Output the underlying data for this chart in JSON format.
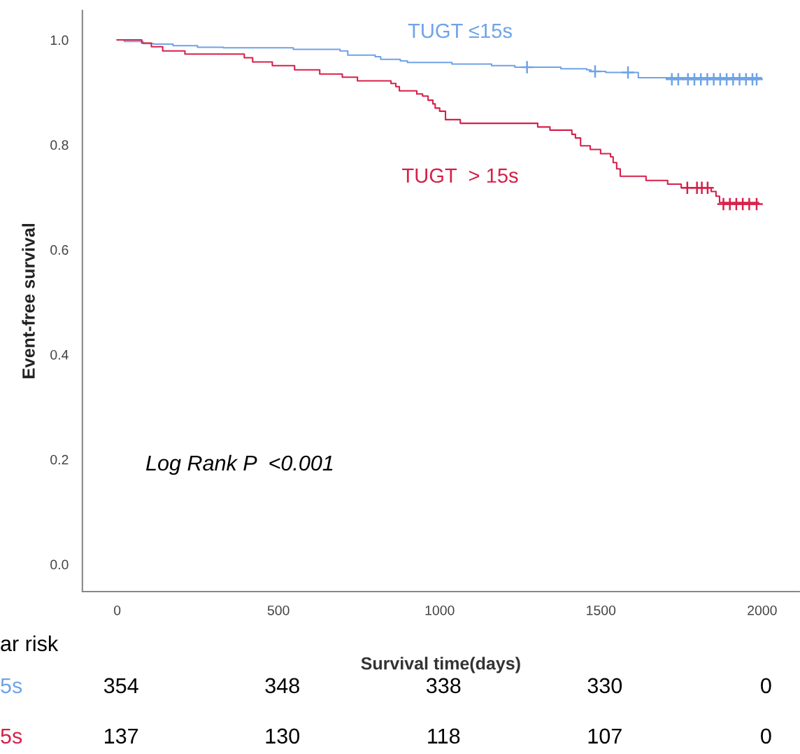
{
  "chart_data": {
    "type": "step",
    "xlabel": "Survival time(days)",
    "ylabel": "Event-free survival",
    "xlim": [
      -108,
      2115
    ],
    "ylim": [
      -0.052,
      1.056
    ],
    "xticks": [
      0,
      500,
      1000,
      1500,
      2000
    ],
    "yticks": [
      {
        "value": 0.0,
        "label": "0.0"
      },
      {
        "value": 0.2,
        "label": "0.2"
      },
      {
        "value": 0.4,
        "label": "0.4"
      },
      {
        "value": 0.6,
        "label": "0.6"
      },
      {
        "value": 0.8,
        "label": "0.8"
      },
      {
        "value": 1.0,
        "label": "1.0"
      }
    ],
    "grid": false,
    "legend": false,
    "series": [
      {
        "name": "TUGT ≤15s",
        "color": "#6fa3e6",
        "x": [
          0,
          22,
          80,
          113,
          173,
          249,
          329,
          546,
          691,
          715,
          800,
          817,
          878,
          900,
          1038,
          1161,
          1233,
          1376,
          1456,
          1469,
          1515,
          1616,
          1998
        ],
        "values": [
          1.0,
          0.997,
          0.993,
          0.992,
          0.989,
          0.986,
          0.985,
          0.982,
          0.979,
          0.971,
          0.968,
          0.963,
          0.96,
          0.957,
          0.954,
          0.951,
          0.948,
          0.945,
          0.943,
          0.94,
          0.938,
          0.928,
          0.925
        ]
      },
      {
        "name": "TUGT  > 15s",
        "color": "#d6204a",
        "x": [
          0,
          76,
          106,
          141,
          210,
          394,
          420,
          481,
          550,
          628,
          698,
          745,
          849,
          864,
          875,
          929,
          947,
          964,
          979,
          986,
          1000,
          1018,
          1064,
          1304,
          1342,
          1410,
          1421,
          1437,
          1467,
          1499,
          1530,
          1538,
          1549,
          1560,
          1640,
          1707,
          1749,
          1842,
          1857,
          1868,
          1989
        ],
        "values": [
          1.0,
          0.994,
          0.987,
          0.979,
          0.973,
          0.966,
          0.958,
          0.951,
          0.943,
          0.935,
          0.929,
          0.922,
          0.917,
          0.911,
          0.903,
          0.897,
          0.893,
          0.885,
          0.878,
          0.87,
          0.864,
          0.848,
          0.841,
          0.834,
          0.828,
          0.82,
          0.813,
          0.798,
          0.791,
          0.783,
          0.777,
          0.766,
          0.754,
          0.74,
          0.732,
          0.725,
          0.718,
          0.711,
          0.702,
          0.69,
          0.687
        ]
      },
      {
        "color": "#6fa3e6",
        "type": "scatter",
        "marker": "cross",
        "x": [
          1271,
          1482,
          1584,
          1720,
          1740,
          1770,
          1790,
          1810,
          1830,
          1850,
          1870,
          1890,
          1910,
          1930,
          1950,
          1970,
          1983
        ],
        "values": [
          0.948,
          0.94,
          0.938,
          0.925,
          0.925,
          0.925,
          0.925,
          0.925,
          0.925,
          0.925,
          0.925,
          0.925,
          0.925,
          0.925,
          0.925,
          0.925,
          0.925
        ]
      },
      {
        "color": "#d6204a",
        "type": "scatter",
        "marker": "cross",
        "x": [
          1768,
          1798,
          1813,
          1831,
          1880,
          1900,
          1920,
          1940,
          1960,
          1983
        ],
        "values": [
          0.718,
          0.718,
          0.718,
          0.718,
          0.687,
          0.687,
          0.687,
          0.687,
          0.687,
          0.687
        ]
      }
    ],
    "annotations": [
      "Log Rank P  <0.001",
      "ar risk",
      "5s",
      "354",
      "348",
      "338",
      "330",
      "0",
      "5s",
      "137",
      "130",
      "118",
      "107",
      "0"
    ]
  }
}
